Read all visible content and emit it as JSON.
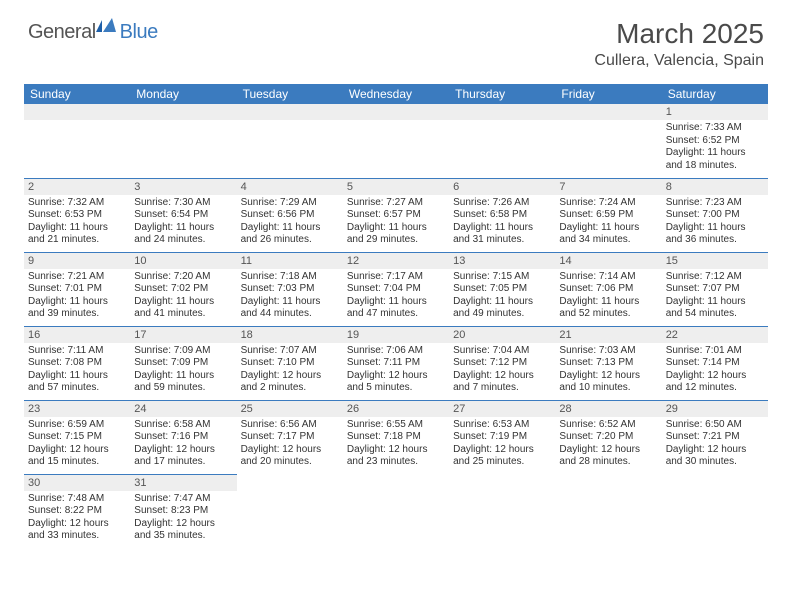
{
  "logo": {
    "general": "General",
    "blue": "Blue"
  },
  "title": "March 2025",
  "location": "Cullera, Valencia, Spain",
  "colors": {
    "header_bg": "#3b7bbf",
    "header_text": "#ffffff",
    "daynum_bg": "#eeeeee",
    "border": "#3b7bbf",
    "body_text": "#333333"
  },
  "day_headers": [
    "Sunday",
    "Monday",
    "Tuesday",
    "Wednesday",
    "Thursday",
    "Friday",
    "Saturday"
  ],
  "weeks": [
    [
      null,
      null,
      null,
      null,
      null,
      null,
      {
        "n": "1",
        "sr": "7:33 AM",
        "ss": "6:52 PM",
        "dl": "11 hours and 18 minutes."
      }
    ],
    [
      {
        "n": "2",
        "sr": "7:32 AM",
        "ss": "6:53 PM",
        "dl": "11 hours and 21 minutes."
      },
      {
        "n": "3",
        "sr": "7:30 AM",
        "ss": "6:54 PM",
        "dl": "11 hours and 24 minutes."
      },
      {
        "n": "4",
        "sr": "7:29 AM",
        "ss": "6:56 PM",
        "dl": "11 hours and 26 minutes."
      },
      {
        "n": "5",
        "sr": "7:27 AM",
        "ss": "6:57 PM",
        "dl": "11 hours and 29 minutes."
      },
      {
        "n": "6",
        "sr": "7:26 AM",
        "ss": "6:58 PM",
        "dl": "11 hours and 31 minutes."
      },
      {
        "n": "7",
        "sr": "7:24 AM",
        "ss": "6:59 PM",
        "dl": "11 hours and 34 minutes."
      },
      {
        "n": "8",
        "sr": "7:23 AM",
        "ss": "7:00 PM",
        "dl": "11 hours and 36 minutes."
      }
    ],
    [
      {
        "n": "9",
        "sr": "7:21 AM",
        "ss": "7:01 PM",
        "dl": "11 hours and 39 minutes."
      },
      {
        "n": "10",
        "sr": "7:20 AM",
        "ss": "7:02 PM",
        "dl": "11 hours and 41 minutes."
      },
      {
        "n": "11",
        "sr": "7:18 AM",
        "ss": "7:03 PM",
        "dl": "11 hours and 44 minutes."
      },
      {
        "n": "12",
        "sr": "7:17 AM",
        "ss": "7:04 PM",
        "dl": "11 hours and 47 minutes."
      },
      {
        "n": "13",
        "sr": "7:15 AM",
        "ss": "7:05 PM",
        "dl": "11 hours and 49 minutes."
      },
      {
        "n": "14",
        "sr": "7:14 AM",
        "ss": "7:06 PM",
        "dl": "11 hours and 52 minutes."
      },
      {
        "n": "15",
        "sr": "7:12 AM",
        "ss": "7:07 PM",
        "dl": "11 hours and 54 minutes."
      }
    ],
    [
      {
        "n": "16",
        "sr": "7:11 AM",
        "ss": "7:08 PM",
        "dl": "11 hours and 57 minutes."
      },
      {
        "n": "17",
        "sr": "7:09 AM",
        "ss": "7:09 PM",
        "dl": "11 hours and 59 minutes."
      },
      {
        "n": "18",
        "sr": "7:07 AM",
        "ss": "7:10 PM",
        "dl": "12 hours and 2 minutes."
      },
      {
        "n": "19",
        "sr": "7:06 AM",
        "ss": "7:11 PM",
        "dl": "12 hours and 5 minutes."
      },
      {
        "n": "20",
        "sr": "7:04 AM",
        "ss": "7:12 PM",
        "dl": "12 hours and 7 minutes."
      },
      {
        "n": "21",
        "sr": "7:03 AM",
        "ss": "7:13 PM",
        "dl": "12 hours and 10 minutes."
      },
      {
        "n": "22",
        "sr": "7:01 AM",
        "ss": "7:14 PM",
        "dl": "12 hours and 12 minutes."
      }
    ],
    [
      {
        "n": "23",
        "sr": "6:59 AM",
        "ss": "7:15 PM",
        "dl": "12 hours and 15 minutes."
      },
      {
        "n": "24",
        "sr": "6:58 AM",
        "ss": "7:16 PM",
        "dl": "12 hours and 17 minutes."
      },
      {
        "n": "25",
        "sr": "6:56 AM",
        "ss": "7:17 PM",
        "dl": "12 hours and 20 minutes."
      },
      {
        "n": "26",
        "sr": "6:55 AM",
        "ss": "7:18 PM",
        "dl": "12 hours and 23 minutes."
      },
      {
        "n": "27",
        "sr": "6:53 AM",
        "ss": "7:19 PM",
        "dl": "12 hours and 25 minutes."
      },
      {
        "n": "28",
        "sr": "6:52 AM",
        "ss": "7:20 PM",
        "dl": "12 hours and 28 minutes."
      },
      {
        "n": "29",
        "sr": "6:50 AM",
        "ss": "7:21 PM",
        "dl": "12 hours and 30 minutes."
      }
    ],
    [
      {
        "n": "30",
        "sr": "7:48 AM",
        "ss": "8:22 PM",
        "dl": "12 hours and 33 minutes."
      },
      {
        "n": "31",
        "sr": "7:47 AM",
        "ss": "8:23 PM",
        "dl": "12 hours and 35 minutes."
      },
      null,
      null,
      null,
      null,
      null
    ]
  ],
  "labels": {
    "sunrise": "Sunrise:",
    "sunset": "Sunset:",
    "daylight": "Daylight:"
  }
}
